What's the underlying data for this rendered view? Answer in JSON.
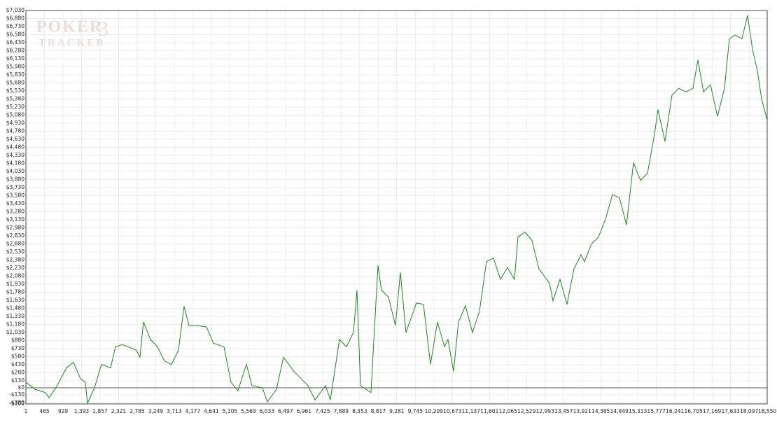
{
  "chart_data": {
    "type": "line",
    "logo": {
      "top": "POKER",
      "number": "3",
      "bottom": "TRACKER"
    },
    "x": [
      1,
      228,
      490,
      578,
      753,
      1016,
      1191,
      1366,
      1489,
      1541,
      1717,
      1892,
      2120,
      2242,
      2417,
      2768,
      2855,
      2943,
      3118,
      3293,
      3468,
      3643,
      3818,
      3959,
      4081,
      4256,
      4519,
      4694,
      4957,
      5132,
      5307,
      5518,
      5658,
      5920,
      6043,
      6271,
      6446,
      6709,
      7059,
      7234,
      7497,
      7619,
      7847,
      8022,
      8197,
      8285,
      8373,
      8635,
      8811,
      8898,
      9073,
      9248,
      9371,
      9511,
      9774,
      9949,
      10124,
      10299,
      10475,
      10562,
      10702,
      10825,
      11000,
      11175,
      11350,
      11526,
      11701,
      11876,
      12051,
      12226,
      12314,
      12489,
      12664,
      12839,
      13102,
      13190,
      13365,
      13540,
      13715,
      13890,
      13978,
      14153,
      14328,
      14503,
      14678,
      14854,
      15029,
      15204,
      15379,
      15554,
      15729,
      15817,
      15992,
      16167,
      16342,
      16518,
      16693,
      16816,
      16956,
      17131,
      17306,
      17481,
      17604,
      17744,
      17919,
      18059,
      18182,
      18304,
      18409,
      18550
    ],
    "series": [
      {
        "color": "#1a8a1a",
        "values": [
          105,
          -26,
          -90,
          -185,
          0,
          370,
          475,
          170,
          105,
          -290,
          0,
          435,
          370,
          765,
          805,
          700,
          570,
          1225,
          900,
          765,
          500,
          435,
          700,
          1515,
          1160,
          1160,
          1135,
          830,
          765,
          105,
          -55,
          435,
          40,
          0,
          -265,
          -26,
          570,
          305,
          40,
          -225,
          40,
          -225,
          900,
          765,
          1030,
          1820,
          40,
          -90,
          2280,
          1820,
          1690,
          1160,
          2150,
          1030,
          1580,
          1555,
          435,
          1225,
          765,
          900,
          305,
          1225,
          1530,
          1030,
          1425,
          2350,
          2415,
          2020,
          2240,
          2020,
          2810,
          2900,
          2745,
          2215,
          1950,
          1620,
          2020,
          1555,
          2215,
          2480,
          2350,
          2680,
          2810,
          3140,
          3600,
          3540,
          3035,
          4195,
          3865,
          3995,
          4720,
          5185,
          4590,
          5450,
          5580,
          5515,
          5580,
          6110,
          5515,
          5645,
          5055,
          5580,
          6505,
          6570,
          6505,
          6940,
          6305,
          5910,
          5385,
          4985
        ]
      }
    ],
    "xlim": [
      1,
      18550
    ],
    "ylim": [
      -300,
      7030
    ],
    "xticks": [
      1,
      465,
      929,
      {
        "value": 1393,
        "label": "1,393"
      },
      {
        "value": 1857,
        "label": "1,857"
      },
      {
        "value": 2321,
        "label": "2,321"
      },
      {
        "value": 2785,
        "label": "2,785"
      },
      {
        "value": 3249,
        "label": "3,249"
      },
      {
        "value": 3713,
        "label": "3,713"
      },
      {
        "value": 4177,
        "label": "4,177"
      },
      {
        "value": 4641,
        "label": "4,641"
      },
      {
        "value": 5105,
        "label": "5,105"
      },
      {
        "value": 5569,
        "label": "5,569"
      },
      {
        "value": 6033,
        "label": "6,033"
      },
      {
        "value": 6497,
        "label": "6,497"
      },
      {
        "value": 6961,
        "label": "6,961"
      },
      {
        "value": 7425,
        "label": "7,425"
      },
      {
        "value": 7889,
        "label": "7,889"
      },
      {
        "value": 8353,
        "label": "8,353"
      },
      {
        "value": 8817,
        "label": "8,817"
      },
      {
        "value": 9281,
        "label": "9,281"
      },
      {
        "value": 9745,
        "label": "9,745"
      },
      {
        "value": 10209,
        "label": "10,209"
      },
      {
        "value": 10673,
        "label": "10,673"
      },
      {
        "value": 11137,
        "label": "11,137"
      },
      {
        "value": 11601,
        "label": "11,601"
      },
      {
        "value": 12065,
        "label": "12,065"
      },
      {
        "value": 12529,
        "label": "12,529"
      },
      {
        "value": 12993,
        "label": "12,993"
      },
      {
        "value": 13457,
        "label": "13,457"
      },
      {
        "value": 13921,
        "label": "13,921"
      },
      {
        "value": 14385,
        "label": "14,385"
      },
      {
        "value": 14849,
        "label": "14,849"
      },
      {
        "value": 15313,
        "label": "15,313"
      },
      {
        "value": 15777,
        "label": "15,777"
      },
      {
        "value": 16241,
        "label": "16,241"
      },
      {
        "value": 16705,
        "label": "16,705"
      },
      {
        "value": 17169,
        "label": "17,169"
      },
      {
        "value": 17633,
        "label": "17,633"
      },
      {
        "value": 18097,
        "label": "18,097"
      },
      {
        "value": 18550,
        "label": "18,550"
      }
    ],
    "yticks": [
      {
        "value": 7030,
        "label": "$7,030"
      },
      {
        "value": 6880,
        "label": "$6,880"
      },
      {
        "value": 6730,
        "label": "$6,730"
      },
      {
        "value": 6580,
        "label": "$6,580"
      },
      {
        "value": 6430,
        "label": "$6,430"
      },
      {
        "value": 6280,
        "label": "$6,280"
      },
      {
        "value": 6130,
        "label": "$6,130"
      },
      {
        "value": 5980,
        "label": "$5,980"
      },
      {
        "value": 5830,
        "label": "$5,830"
      },
      {
        "value": 5680,
        "label": "$5,680"
      },
      {
        "value": 5530,
        "label": "$5,530"
      },
      {
        "value": 5380,
        "label": "$5,380"
      },
      {
        "value": 5230,
        "label": "$5,230"
      },
      {
        "value": 5080,
        "label": "$5,080"
      },
      {
        "value": 4930,
        "label": "$4,930"
      },
      {
        "value": 4780,
        "label": "$4,780"
      },
      {
        "value": 4630,
        "label": "$4,630"
      },
      {
        "value": 4480,
        "label": "$4,480"
      },
      {
        "value": 4330,
        "label": "$4,330"
      },
      {
        "value": 4180,
        "label": "$4,180"
      },
      {
        "value": 4030,
        "label": "$4,030"
      },
      {
        "value": 3880,
        "label": "$3,880"
      },
      {
        "value": 3730,
        "label": "$3,730"
      },
      {
        "value": 3580,
        "label": "$3,580"
      },
      {
        "value": 3430,
        "label": "$3,430"
      },
      {
        "value": 3280,
        "label": "$3,280"
      },
      {
        "value": 3130,
        "label": "$3,130"
      },
      {
        "value": 2980,
        "label": "$2,980"
      },
      {
        "value": 2830,
        "label": "$2,830"
      },
      {
        "value": 2680,
        "label": "$2,680"
      },
      {
        "value": 2530,
        "label": "$2,530"
      },
      {
        "value": 2380,
        "label": "$2,380"
      },
      {
        "value": 2230,
        "label": "$2,230"
      },
      {
        "value": 2080,
        "label": "$2,080"
      },
      {
        "value": 1930,
        "label": "$1,930"
      },
      {
        "value": 1780,
        "label": "$1,780"
      },
      {
        "value": 1630,
        "label": "$1,630"
      },
      {
        "value": 1480,
        "label": "$1,480"
      },
      {
        "value": 1330,
        "label": "$1,330"
      },
      {
        "value": 1180,
        "label": "$1,180"
      },
      {
        "value": 1030,
        "label": "$1,030"
      },
      {
        "value": 880,
        "label": "$880"
      },
      {
        "value": 730,
        "label": "$730"
      },
      {
        "value": 580,
        "label": "$580"
      },
      {
        "value": 430,
        "label": "$430"
      },
      {
        "value": 280,
        "label": "$280"
      },
      {
        "value": 130,
        "label": "$130"
      },
      {
        "value": 0,
        "label": "$0"
      },
      {
        "value": -130,
        "label": "-$130"
      },
      {
        "value": -280,
        "label": "-$280"
      },
      {
        "value": -300,
        "label": "-$300"
      }
    ],
    "grid": true
  }
}
